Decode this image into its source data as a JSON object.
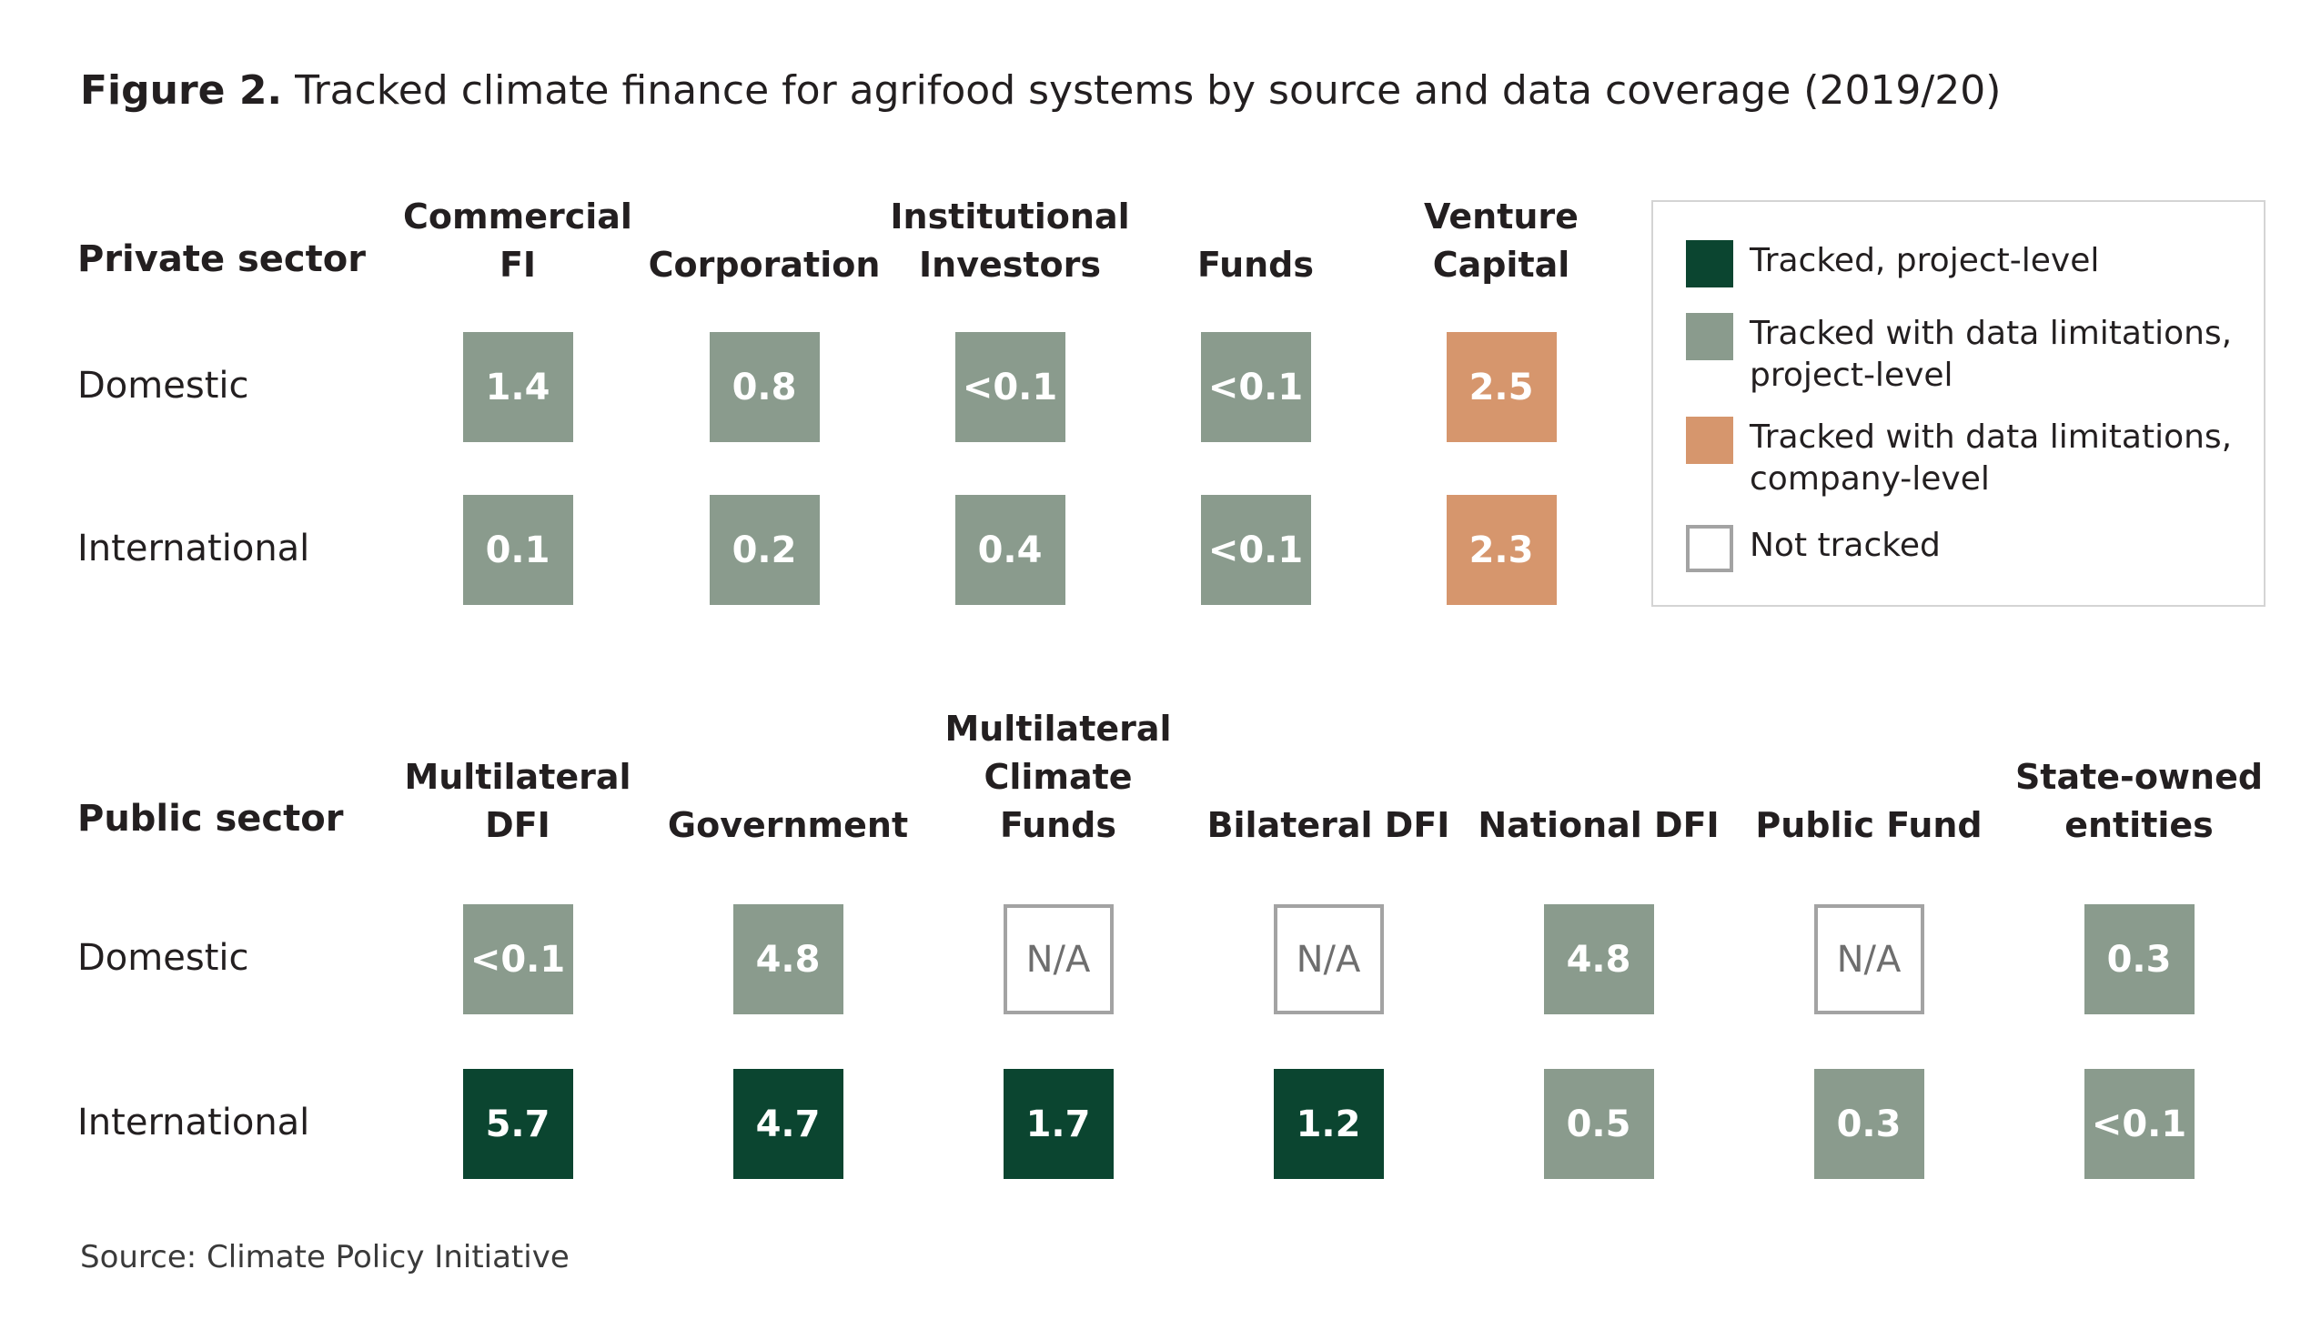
{
  "title": {
    "prefix": "Figure 2.",
    "text": "Tracked climate finance for agrifood systems by source and data coverage (2019/20)"
  },
  "colors": {
    "tracked": "#0b4530",
    "limited": "#8a9b8d",
    "company": "#d6966d",
    "na_border": "#a3a3a3"
  },
  "legend": {
    "items": [
      {
        "key": "tracked",
        "label": "Tracked, project-level"
      },
      {
        "key": "limited",
        "label": "Tracked with data limitations, project-level"
      },
      {
        "key": "company",
        "label": "Tracked with data limitations, company-level"
      },
      {
        "key": "na",
        "label": "Not tracked"
      }
    ]
  },
  "chart_data": [
    {
      "type": "table",
      "sector": "Private sector",
      "columns": [
        "Commercial FI",
        "Corporation",
        "Institutional Investors",
        "Funds",
        "Venture Capital"
      ],
      "rows": [
        {
          "label": "Domestic",
          "values": [
            "1.4",
            "0.8",
            "<0.1",
            "<0.1",
            "2.5"
          ],
          "status": [
            "limited",
            "limited",
            "limited",
            "limited",
            "company"
          ]
        },
        {
          "label": "International",
          "values": [
            "0.1",
            "0.2",
            "0.4",
            "<0.1",
            "2.3"
          ],
          "status": [
            "limited",
            "limited",
            "limited",
            "limited",
            "company"
          ]
        }
      ]
    },
    {
      "type": "table",
      "sector": "Public sector",
      "columns": [
        "Multilateral DFI",
        "Government",
        "Multilateral Climate Funds",
        "Bilateral DFI",
        "National DFI",
        "Public Fund",
        "State-owned entities"
      ],
      "rows": [
        {
          "label": "Domestic",
          "values": [
            "<0.1",
            "4.8",
            "N/A",
            "N/A",
            "4.8",
            "N/A",
            "0.3"
          ],
          "status": [
            "limited",
            "limited",
            "na",
            "na",
            "limited",
            "na",
            "limited"
          ]
        },
        {
          "label": "International",
          "values": [
            "5.7",
            "4.7",
            "1.7",
            "1.2",
            "0.5",
            "0.3",
            "<0.1"
          ],
          "status": [
            "tracked",
            "tracked",
            "tracked",
            "tracked",
            "limited",
            "limited",
            "limited"
          ]
        }
      ]
    }
  ],
  "source": "Source: Climate Policy Initiative"
}
